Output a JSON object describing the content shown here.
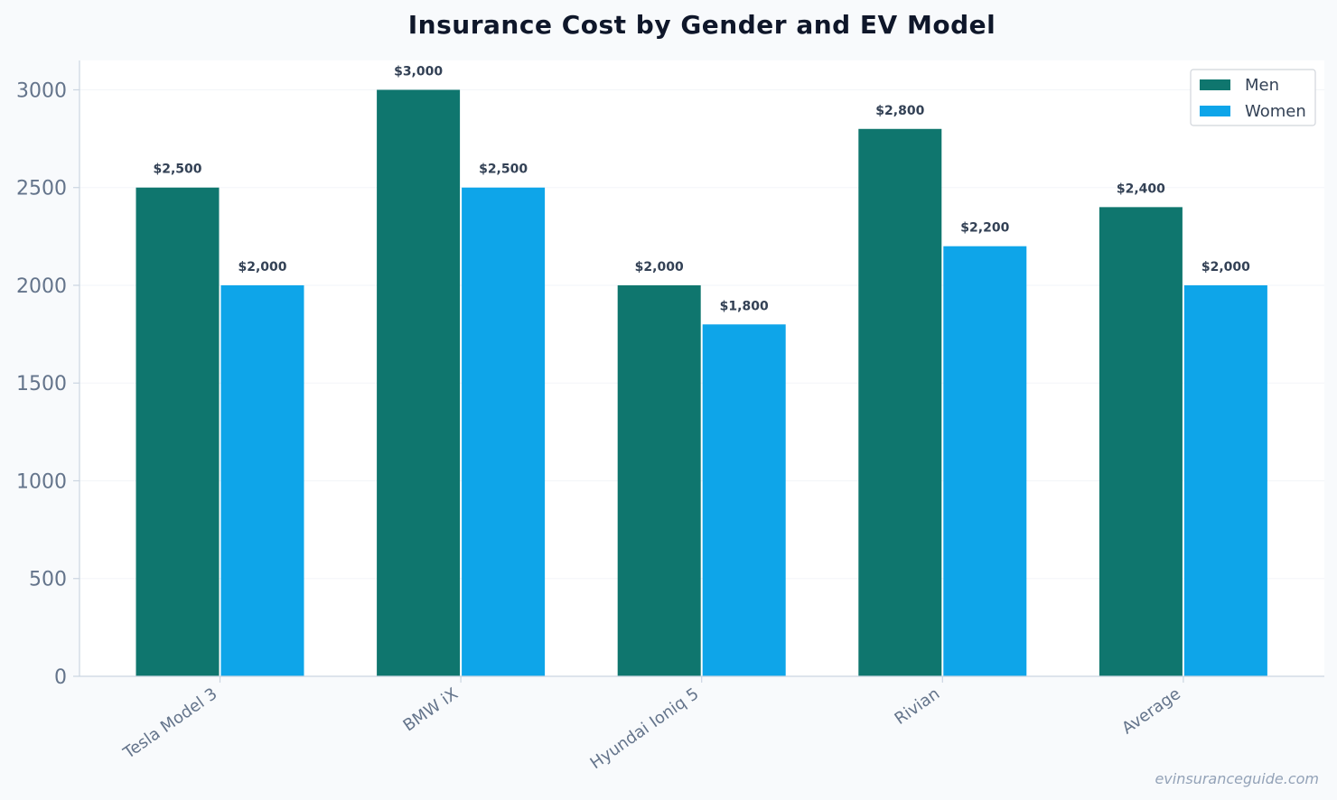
{
  "chart_data": {
    "type": "bar",
    "title": "Insurance Cost by Gender and EV Model",
    "xlabel": "",
    "ylabel": "",
    "categories": [
      "Tesla Model 3",
      "BMW iX",
      "Hyundai Ioniq 5",
      "Rivian",
      "Average"
    ],
    "series": [
      {
        "name": "Men",
        "color": "#0f766e",
        "values": [
          2500,
          3000,
          2000,
          2800,
          2400
        ],
        "labels": [
          "$2,500",
          "$3,000",
          "$2,000",
          "$2,800",
          "$2,400"
        ]
      },
      {
        "name": "Women",
        "color": "#0ea5e9",
        "values": [
          2000,
          2500,
          1800,
          2200,
          2000
        ],
        "labels": [
          "$2,000",
          "$2,500",
          "$1,800",
          "$2,200",
          "$2,000"
        ]
      }
    ],
    "ylim": [
      0,
      3150
    ],
    "yticks": [
      0,
      500,
      1000,
      1500,
      2000,
      2500,
      3000
    ],
    "grid": true,
    "legend_position": "top-right"
  },
  "watermark": "evinsuranceguide.com"
}
